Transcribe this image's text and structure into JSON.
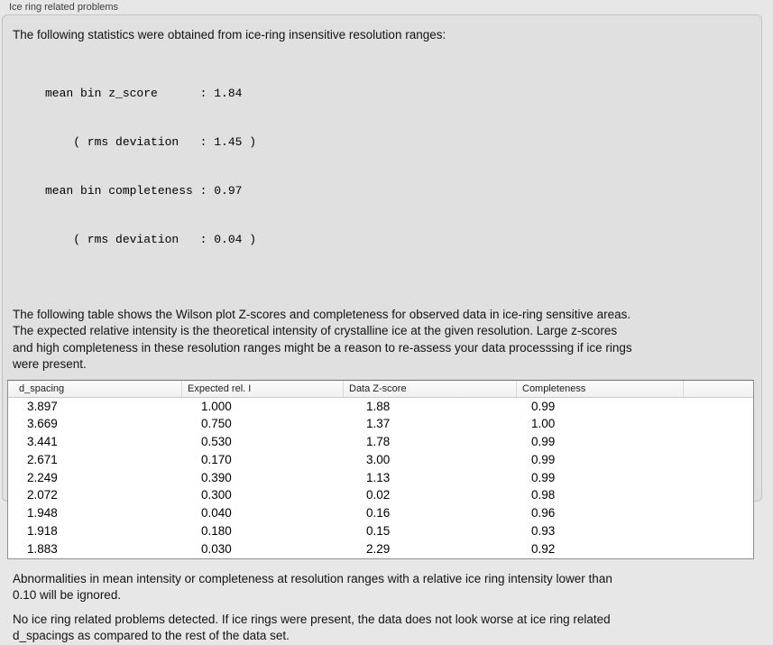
{
  "title": "Ice ring related problems",
  "panel": {
    "stats_intro": "The following statistics were obtained from ice-ring insensitive resolution ranges:",
    "stats_block": {
      "lines": [
        "mean bin z_score      : 1.84",
        "    ( rms deviation   : 1.45 )",
        "mean bin completeness : 0.97",
        "    ( rms deviation   : 0.04 )"
      ]
    },
    "table_intro": {
      "lines": [
        "The following table shows the Wilson plot Z-scores and completeness for observed data in ice-ring sensitive areas.",
        "The expected relative intensity is the theoretical intensity of crystalline ice at the given resolution. Large z-scores",
        "and high completeness in these resolution ranges might be a reason to re-assess your data processsing if ice rings",
        "were present."
      ]
    },
    "table": {
      "columns": [
        "d_spacing",
        "Expected rel. I",
        "Data Z-score",
        "Completeness"
      ],
      "rows": [
        [
          "3.897",
          "1.000",
          "1.88",
          "0.99"
        ],
        [
          "3.669",
          "0.750",
          "1.37",
          "1.00"
        ],
        [
          "3.441",
          "0.530",
          "1.78",
          "0.99"
        ],
        [
          "2.671",
          "0.170",
          "3.00",
          "0.99"
        ],
        [
          "2.249",
          "0.390",
          "1.13",
          "0.99"
        ],
        [
          "2.072",
          "0.300",
          "0.02",
          "0.98"
        ],
        [
          "1.948",
          "0.040",
          "0.16",
          "0.96"
        ],
        [
          "1.918",
          "0.180",
          "0.15",
          "0.93"
        ],
        [
          "1.883",
          "0.030",
          "2.29",
          "0.92"
        ]
      ]
    },
    "abnormalities_note": {
      "lines": [
        "Abnormalities in mean intensity or completeness at resolution ranges with a relative ice ring intensity lower than",
        "0.10 will be ignored."
      ]
    },
    "conclusion": {
      "lines": [
        "No ice ring related problems detected. If ice rings were present, the data does not look worse at ice ring related",
        "d_spacings as compared to the rest of the data set."
      ]
    }
  }
}
